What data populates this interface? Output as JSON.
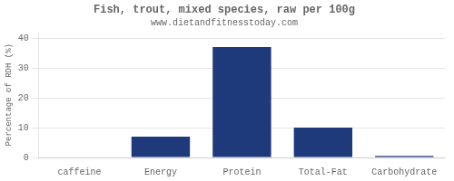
{
  "chart_data": {
    "type": "bar",
    "title": "Fish, trout, mixed species, raw per 100g",
    "subtitle": "www.dietandfitnesstoday.com",
    "ylabel": "Percentage of RDH (%)",
    "categories": [
      "caffeine",
      "Energy",
      "Protein",
      "Total-Fat",
      "Carbohydrate"
    ],
    "values": [
      0,
      7,
      37,
      10,
      0.5
    ],
    "color": "#1F3A7A",
    "ylim": [
      0,
      42
    ],
    "yticks": [
      0,
      10,
      20,
      30,
      40
    ],
    "grid": true
  }
}
